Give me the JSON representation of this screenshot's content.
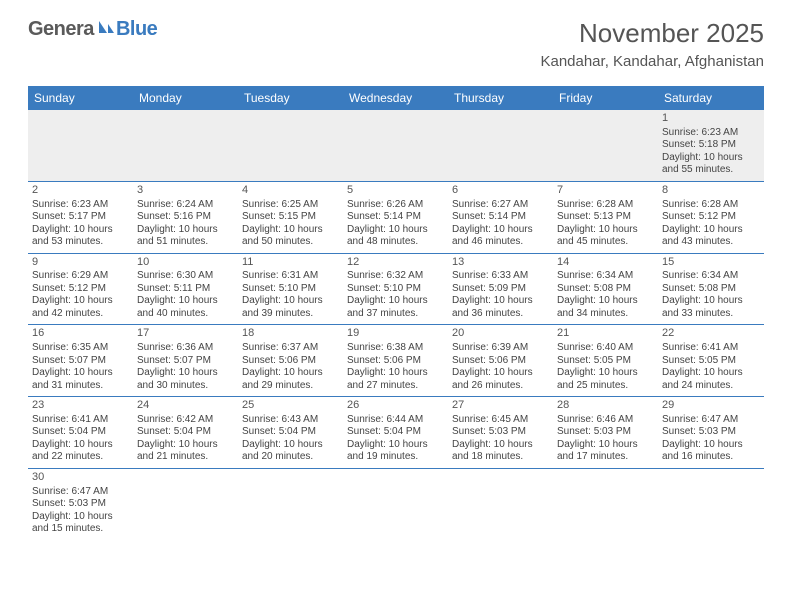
{
  "logo": {
    "text1": "Genera",
    "text2": "Blue"
  },
  "title": "November 2025",
  "location": "Kandahar, Kandahar, Afghanistan",
  "colors": {
    "header_bg": "#3a7bbf",
    "header_fg": "#ffffff",
    "text": "#444444",
    "border": "#3a7bbf",
    "first_row_bg": "#eeeeee"
  },
  "typography": {
    "title_fontsize": 26,
    "location_fontsize": 15,
    "dayheader_fontsize": 12,
    "cell_fontsize": 10
  },
  "day_headers": [
    "Sunday",
    "Monday",
    "Tuesday",
    "Wednesday",
    "Thursday",
    "Friday",
    "Saturday"
  ],
  "weeks": [
    [
      null,
      null,
      null,
      null,
      null,
      null,
      {
        "n": "1",
        "sr": "Sunrise: 6:23 AM",
        "ss": "Sunset: 5:18 PM",
        "d1": "Daylight: 10 hours",
        "d2": "and 55 minutes."
      }
    ],
    [
      {
        "n": "2",
        "sr": "Sunrise: 6:23 AM",
        "ss": "Sunset: 5:17 PM",
        "d1": "Daylight: 10 hours",
        "d2": "and 53 minutes."
      },
      {
        "n": "3",
        "sr": "Sunrise: 6:24 AM",
        "ss": "Sunset: 5:16 PM",
        "d1": "Daylight: 10 hours",
        "d2": "and 51 minutes."
      },
      {
        "n": "4",
        "sr": "Sunrise: 6:25 AM",
        "ss": "Sunset: 5:15 PM",
        "d1": "Daylight: 10 hours",
        "d2": "and 50 minutes."
      },
      {
        "n": "5",
        "sr": "Sunrise: 6:26 AM",
        "ss": "Sunset: 5:14 PM",
        "d1": "Daylight: 10 hours",
        "d2": "and 48 minutes."
      },
      {
        "n": "6",
        "sr": "Sunrise: 6:27 AM",
        "ss": "Sunset: 5:14 PM",
        "d1": "Daylight: 10 hours",
        "d2": "and 46 minutes."
      },
      {
        "n": "7",
        "sr": "Sunrise: 6:28 AM",
        "ss": "Sunset: 5:13 PM",
        "d1": "Daylight: 10 hours",
        "d2": "and 45 minutes."
      },
      {
        "n": "8",
        "sr": "Sunrise: 6:28 AM",
        "ss": "Sunset: 5:12 PM",
        "d1": "Daylight: 10 hours",
        "d2": "and 43 minutes."
      }
    ],
    [
      {
        "n": "9",
        "sr": "Sunrise: 6:29 AM",
        "ss": "Sunset: 5:12 PM",
        "d1": "Daylight: 10 hours",
        "d2": "and 42 minutes."
      },
      {
        "n": "10",
        "sr": "Sunrise: 6:30 AM",
        "ss": "Sunset: 5:11 PM",
        "d1": "Daylight: 10 hours",
        "d2": "and 40 minutes."
      },
      {
        "n": "11",
        "sr": "Sunrise: 6:31 AM",
        "ss": "Sunset: 5:10 PM",
        "d1": "Daylight: 10 hours",
        "d2": "and 39 minutes."
      },
      {
        "n": "12",
        "sr": "Sunrise: 6:32 AM",
        "ss": "Sunset: 5:10 PM",
        "d1": "Daylight: 10 hours",
        "d2": "and 37 minutes."
      },
      {
        "n": "13",
        "sr": "Sunrise: 6:33 AM",
        "ss": "Sunset: 5:09 PM",
        "d1": "Daylight: 10 hours",
        "d2": "and 36 minutes."
      },
      {
        "n": "14",
        "sr": "Sunrise: 6:34 AM",
        "ss": "Sunset: 5:08 PM",
        "d1": "Daylight: 10 hours",
        "d2": "and 34 minutes."
      },
      {
        "n": "15",
        "sr": "Sunrise: 6:34 AM",
        "ss": "Sunset: 5:08 PM",
        "d1": "Daylight: 10 hours",
        "d2": "and 33 minutes."
      }
    ],
    [
      {
        "n": "16",
        "sr": "Sunrise: 6:35 AM",
        "ss": "Sunset: 5:07 PM",
        "d1": "Daylight: 10 hours",
        "d2": "and 31 minutes."
      },
      {
        "n": "17",
        "sr": "Sunrise: 6:36 AM",
        "ss": "Sunset: 5:07 PM",
        "d1": "Daylight: 10 hours",
        "d2": "and 30 minutes."
      },
      {
        "n": "18",
        "sr": "Sunrise: 6:37 AM",
        "ss": "Sunset: 5:06 PM",
        "d1": "Daylight: 10 hours",
        "d2": "and 29 minutes."
      },
      {
        "n": "19",
        "sr": "Sunrise: 6:38 AM",
        "ss": "Sunset: 5:06 PM",
        "d1": "Daylight: 10 hours",
        "d2": "and 27 minutes."
      },
      {
        "n": "20",
        "sr": "Sunrise: 6:39 AM",
        "ss": "Sunset: 5:06 PM",
        "d1": "Daylight: 10 hours",
        "d2": "and 26 minutes."
      },
      {
        "n": "21",
        "sr": "Sunrise: 6:40 AM",
        "ss": "Sunset: 5:05 PM",
        "d1": "Daylight: 10 hours",
        "d2": "and 25 minutes."
      },
      {
        "n": "22",
        "sr": "Sunrise: 6:41 AM",
        "ss": "Sunset: 5:05 PM",
        "d1": "Daylight: 10 hours",
        "d2": "and 24 minutes."
      }
    ],
    [
      {
        "n": "23",
        "sr": "Sunrise: 6:41 AM",
        "ss": "Sunset: 5:04 PM",
        "d1": "Daylight: 10 hours",
        "d2": "and 22 minutes."
      },
      {
        "n": "24",
        "sr": "Sunrise: 6:42 AM",
        "ss": "Sunset: 5:04 PM",
        "d1": "Daylight: 10 hours",
        "d2": "and 21 minutes."
      },
      {
        "n": "25",
        "sr": "Sunrise: 6:43 AM",
        "ss": "Sunset: 5:04 PM",
        "d1": "Daylight: 10 hours",
        "d2": "and 20 minutes."
      },
      {
        "n": "26",
        "sr": "Sunrise: 6:44 AM",
        "ss": "Sunset: 5:04 PM",
        "d1": "Daylight: 10 hours",
        "d2": "and 19 minutes."
      },
      {
        "n": "27",
        "sr": "Sunrise: 6:45 AM",
        "ss": "Sunset: 5:03 PM",
        "d1": "Daylight: 10 hours",
        "d2": "and 18 minutes."
      },
      {
        "n": "28",
        "sr": "Sunrise: 6:46 AM",
        "ss": "Sunset: 5:03 PM",
        "d1": "Daylight: 10 hours",
        "d2": "and 17 minutes."
      },
      {
        "n": "29",
        "sr": "Sunrise: 6:47 AM",
        "ss": "Sunset: 5:03 PM",
        "d1": "Daylight: 10 hours",
        "d2": "and 16 minutes."
      }
    ],
    [
      {
        "n": "30",
        "sr": "Sunrise: 6:47 AM",
        "ss": "Sunset: 5:03 PM",
        "d1": "Daylight: 10 hours",
        "d2": "and 15 minutes."
      },
      null,
      null,
      null,
      null,
      null,
      null
    ]
  ]
}
